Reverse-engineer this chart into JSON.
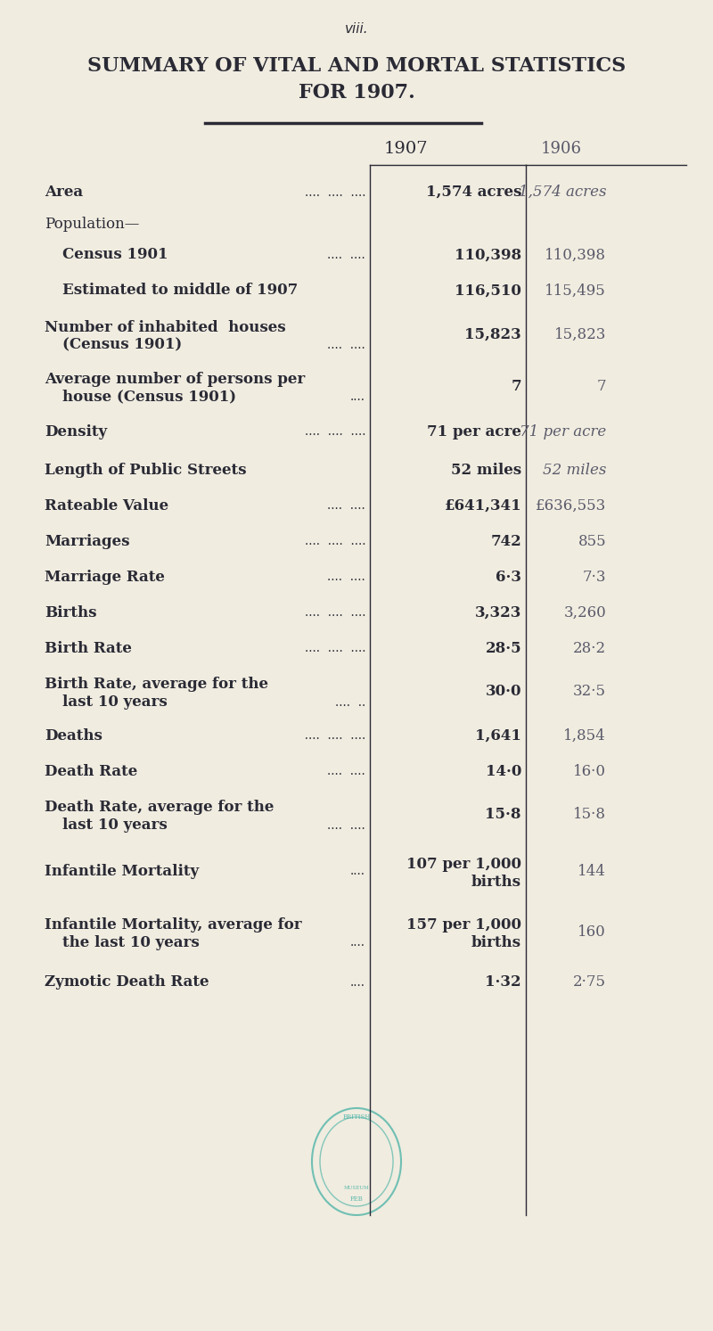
{
  "page_num": "viii.",
  "title_line1": "SUMMARY OF VITAL AND MORTAL STATISTICS",
  "title_line2": "FOR 1907.",
  "col_header_1907": "1907",
  "col_header_1906": "1906",
  "bg_color": "#f0ece0",
  "text_color_dark": "#2a2a35",
  "text_color_light": "#5a5a6a",
  "rows": [
    {
      "label": "Area",
      "label_dots": "....  ....  ....",
      "val1907": "1,574 acres",
      "val1906": "1,574 acres",
      "val1907_bold": true,
      "val1906_italic": true,
      "label_indent": 0
    },
    {
      "label": "Population—",
      "label_dots": "",
      "val1907": "",
      "val1906": "",
      "val1907_bold": false,
      "val1906_italic": false,
      "label_indent": 0
    },
    {
      "label": "Census 1901",
      "label_dots": "....  ....",
      "val1907": "110,398",
      "val1906": "110,398",
      "val1907_bold": true,
      "val1906_italic": false,
      "label_indent": 1
    },
    {
      "label": "Estimated to middle of 1907",
      "label_dots": "",
      "val1907": "116,510",
      "val1906": "115,495",
      "val1907_bold": true,
      "val1906_italic": false,
      "label_indent": 1
    },
    {
      "label": "Number of inhabited  houses\n(Census 1901)",
      "label_dots": "....  ....",
      "val1907": "15,823",
      "val1906": "15,823",
      "val1907_bold": true,
      "val1906_italic": false,
      "label_indent": 0
    },
    {
      "label": "Average number of persons per\nhouse (Census 1901)",
      "label_dots": "....",
      "val1907": "7",
      "val1906": "7",
      "val1907_bold": true,
      "val1906_italic": false,
      "label_indent": 0
    },
    {
      "label": "Density",
      "label_dots": "....  ....  ....",
      "val1907": "71 per acre",
      "val1906": "71 per acre",
      "val1907_bold": true,
      "val1906_italic": true,
      "label_indent": 0
    },
    {
      "label": "Length of Public Streets",
      "label_dots": "",
      "val1907": "52 miles",
      "val1906": "52 miles",
      "val1907_bold": true,
      "val1906_italic": true,
      "label_indent": 0
    },
    {
      "label": "Rateable Value",
      "label_dots": "....  ....",
      "val1907": "£641,341",
      "val1906": "£636,553",
      "val1907_bold": true,
      "val1906_italic": false,
      "label_indent": 0
    },
    {
      "label": "Marriages",
      "label_dots": "....  ....  ....",
      "val1907": "742",
      "val1906": "855",
      "val1907_bold": true,
      "val1906_italic": false,
      "label_indent": 0
    },
    {
      "label": "Marriage Rate",
      "label_dots": "....  ....",
      "val1907": "6·3",
      "val1906": "7·3",
      "val1907_bold": true,
      "val1906_italic": false,
      "label_indent": 0
    },
    {
      "label": "Births",
      "label_dots": "....  ....  ....",
      "val1907": "3,323",
      "val1906": "3,260",
      "val1907_bold": true,
      "val1906_italic": false,
      "label_indent": 0
    },
    {
      "label": "Birth Rate",
      "label_dots": "....  ....  ....",
      "val1907": "28·5",
      "val1906": "28·2",
      "val1907_bold": true,
      "val1906_italic": false,
      "label_indent": 0
    },
    {
      "label": "Birth Rate, average for the\nlast 10 years",
      "label_dots": "....  ..",
      "val1907": "30·0",
      "val1906": "32·5",
      "val1907_bold": true,
      "val1906_italic": false,
      "label_indent": 0
    },
    {
      "label": "Deaths",
      "label_dots": "  ....  ....  ....",
      "val1907": "1,641",
      "val1906": "1,854",
      "val1907_bold": true,
      "val1906_italic": false,
      "label_indent": 0
    },
    {
      "label": "Death Rate",
      "label_dots": "....  ....",
      "val1907": "14·0",
      "val1906": "16·0",
      "val1907_bold": true,
      "val1906_italic": false,
      "label_indent": 0
    },
    {
      "label": "Death Rate, average for the\nlast 10 years",
      "label_dots": "....  ....",
      "val1907": "15·8",
      "val1906": "15·8",
      "val1907_bold": true,
      "val1906_italic": false,
      "label_indent": 0
    },
    {
      "label": "Infantile Mortality",
      "label_dots": "....",
      "val1907": "107 per 1,000\nbirths",
      "val1906": "144",
      "val1907_bold": true,
      "val1906_italic": false,
      "label_indent": 0
    },
    {
      "label": "Infantile Mortality, average for\nthe last 10 years",
      "label_dots": "....",
      "val1907": "157 per 1,000\nbirths",
      "val1906": "160",
      "val1907_bold": true,
      "val1906_italic": false,
      "label_indent": 0
    },
    {
      "label": "Zymotic Death Rate",
      "label_dots": "....",
      "val1907": "1·32",
      "val1906": "2·75",
      "val1907_bold": true,
      "val1906_italic": false,
      "label_indent": 0
    }
  ]
}
